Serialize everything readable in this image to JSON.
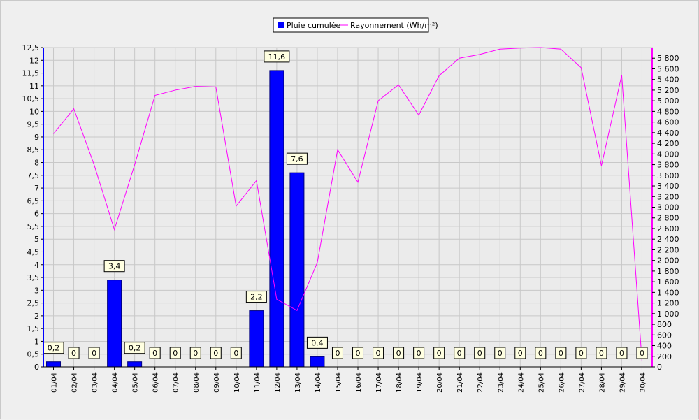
{
  "chart_data": {
    "type": "bar",
    "categories": [
      "01/04",
      "02/04",
      "03/04",
      "04/04",
      "05/04",
      "06/04",
      "07/04",
      "08/04",
      "09/04",
      "10/04",
      "11/04",
      "12/04",
      "13/04",
      "14/04",
      "15/04",
      "16/04",
      "17/04",
      "18/04",
      "19/04",
      "20/04",
      "21/04",
      "22/04",
      "23/04",
      "24/04",
      "25/04",
      "26/04",
      "27/04",
      "28/04",
      "29/04",
      "30/04"
    ],
    "series": [
      {
        "name": "Pluie cumulée",
        "type": "bar",
        "axis": "left",
        "color": "#0000ff",
        "values": [
          0.2,
          0,
          0,
          3.4,
          0.2,
          0,
          0,
          0,
          0,
          0,
          2.2,
          11.6,
          7.6,
          0.4,
          0,
          0,
          0,
          0,
          0,
          0,
          0,
          0,
          0,
          0,
          0,
          0,
          0,
          0,
          0,
          0
        ],
        "labels": [
          "0,2",
          "0",
          "0",
          "3,4",
          "0,2",
          "0",
          "0",
          "0",
          "0",
          "0",
          "2,2",
          "11,6",
          "7,6",
          "0,4",
          "0",
          "0",
          "0",
          "0",
          "0",
          "0",
          "0",
          "0",
          "0",
          "0",
          "0",
          "0",
          "0",
          "0",
          "0",
          "0"
        ]
      },
      {
        "name": "Rayonnement (Wh/m²)",
        "type": "line",
        "axis": "right",
        "color": "#ff00ff",
        "values": [
          4380,
          4850,
          3800,
          2580,
          3800,
          5100,
          5200,
          5270,
          5260,
          3020,
          3500,
          1270,
          1060,
          1960,
          4080,
          3470,
          5000,
          5300,
          4730,
          5470,
          5800,
          5870,
          5970,
          5990,
          6000,
          5970,
          5620,
          3780,
          5480,
          100
        ]
      }
    ],
    "y_left": {
      "min": 0,
      "max": 12.5,
      "step": 0.5,
      "tick_labels": [
        "0",
        "0,5",
        "1",
        "1,5",
        "2",
        "2,5",
        "3",
        "3,5",
        "4",
        "4,5",
        "5",
        "5,5",
        "6",
        "6,5",
        "7",
        "7,5",
        "8",
        "8,5",
        "9",
        "9,5",
        "10",
        "10,5",
        "11",
        "11,5",
        "12",
        "12,5"
      ]
    },
    "y_right": {
      "min": 0,
      "max": 6000,
      "step": 200,
      "tick_labels": [
        "0",
        "200",
        "400",
        "600",
        "800",
        "1 000",
        "1 200",
        "1 400",
        "1 600",
        "1 800",
        "2 000",
        "2 200",
        "2 400",
        "2 600",
        "2 800",
        "3 000",
        "3 200",
        "3 400",
        "3 600",
        "3 800",
        "4 000",
        "4 200",
        "4 400",
        "4 600",
        "4 800",
        "5 000",
        "5 200",
        "5 400",
        "5 600",
        "5 800"
      ]
    },
    "legend": {
      "position": "top-center",
      "items": [
        "Pluie cumulée",
        "Rayonnement (Wh/m²)"
      ]
    },
    "grid": true,
    "colors": {
      "background": "#efefef",
      "plot_background": "#ebebeb",
      "grid": "#c8c8c8",
      "left_axis": "#0000ff",
      "right_axis": "#ff00ff",
      "label_box_fill": "#ffffe1"
    }
  }
}
